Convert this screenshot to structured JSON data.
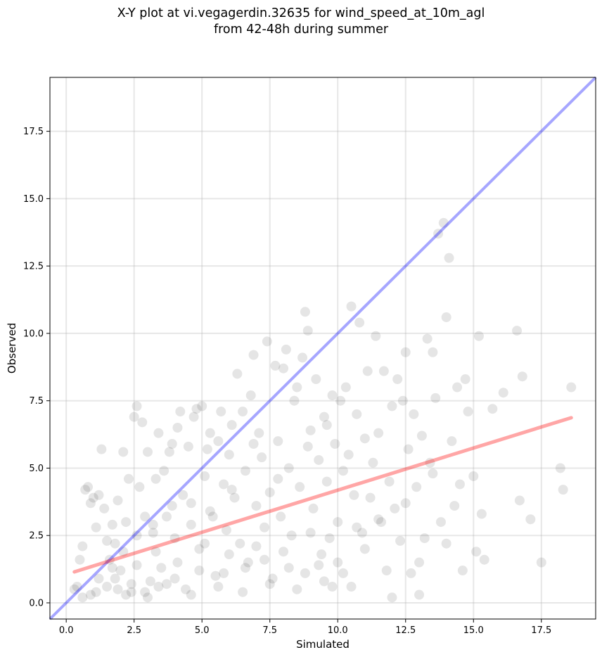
{
  "title_line1": "X-Y plot at vi.vegagerdin.32635 for wind_speed_at_10m_agl",
  "title_line2": "from 42-48h during summer",
  "chart_data": {
    "type": "scatter",
    "title": "X-Y plot at vi.vegagerdin.32635 for wind_speed_at_10m_agl\nfrom 42-48h during summer",
    "xlabel": "Simulated",
    "ylabel": "Observed",
    "xlim": [
      -0.6,
      19.5
    ],
    "ylim": [
      -0.6,
      19.5
    ],
    "x_ticks": [
      "0.0",
      "2.5",
      "5.0",
      "7.5",
      "10.0",
      "12.5",
      "15.0",
      "17.5"
    ],
    "y_ticks": [
      "0.0",
      "2.5",
      "5.0",
      "7.5",
      "10.0",
      "12.5",
      "15.0",
      "17.5"
    ],
    "grid": true,
    "colors": {
      "points": "#000000",
      "identity_line": "#0000ff",
      "fit_line": "#ff0000"
    },
    "identity_line": {
      "x": [
        -0.6,
        19.5
      ],
      "y": [
        -0.6,
        19.5
      ]
    },
    "fit_line": {
      "x": [
        0.3,
        18.6
      ],
      "y": [
        1.15,
        6.87
      ]
    },
    "points": [
      [
        0.3,
        0.5
      ],
      [
        0.4,
        0.6
      ],
      [
        0.5,
        1.6
      ],
      [
        0.6,
        2.1
      ],
      [
        0.7,
        4.2
      ],
      [
        0.8,
        4.3
      ],
      [
        0.9,
        3.7
      ],
      [
        1.0,
        3.9
      ],
      [
        1.1,
        2.8
      ],
      [
        1.2,
        4.0
      ],
      [
        1.3,
        5.7
      ],
      [
        1.4,
        3.5
      ],
      [
        1.5,
        2.3
      ],
      [
        1.6,
        1.6
      ],
      [
        1.7,
        2.9
      ],
      [
        1.8,
        2.2
      ],
      [
        1.9,
        3.8
      ],
      [
        2.0,
        1.2
      ],
      [
        2.1,
        5.6
      ],
      [
        2.2,
        3.0
      ],
      [
        2.3,
        4.6
      ],
      [
        2.4,
        0.4
      ],
      [
        2.5,
        6.9
      ],
      [
        2.6,
        7.3
      ],
      [
        2.7,
        4.3
      ],
      [
        2.8,
        6.7
      ],
      [
        2.9,
        3.2
      ],
      [
        3.0,
        5.6
      ],
      [
        3.1,
        0.8
      ],
      [
        3.2,
        2.6
      ],
      [
        3.3,
        4.6
      ],
      [
        3.4,
        6.3
      ],
      [
        3.5,
        1.3
      ],
      [
        3.6,
        4.9
      ],
      [
        3.7,
        3.2
      ],
      [
        3.8,
        5.6
      ],
      [
        3.9,
        5.9
      ],
      [
        4.0,
        2.4
      ],
      [
        4.1,
        6.5
      ],
      [
        4.2,
        7.1
      ],
      [
        4.3,
        4.0
      ],
      [
        4.4,
        0.5
      ],
      [
        4.5,
        5.8
      ],
      [
        4.6,
        3.7
      ],
      [
        4.7,
        6.9
      ],
      [
        4.8,
        7.2
      ],
      [
        4.9,
        2.0
      ],
      [
        5.0,
        7.3
      ],
      [
        5.1,
        4.7
      ],
      [
        5.2,
        5.7
      ],
      [
        5.3,
        6.3
      ],
      [
        5.4,
        3.2
      ],
      [
        5.5,
        1.0
      ],
      [
        5.6,
        6.0
      ],
      [
        5.7,
        7.1
      ],
      [
        5.8,
        4.4
      ],
      [
        5.9,
        2.7
      ],
      [
        6.0,
        5.5
      ],
      [
        6.1,
        6.6
      ],
      [
        6.2,
        3.9
      ],
      [
        6.3,
        8.5
      ],
      [
        6.4,
        2.2
      ],
      [
        6.5,
        7.1
      ],
      [
        6.6,
        4.9
      ],
      [
        6.7,
        1.5
      ],
      [
        6.8,
        7.7
      ],
      [
        6.9,
        9.2
      ],
      [
        7.0,
        3.6
      ],
      [
        7.1,
        6.3
      ],
      [
        7.2,
        5.4
      ],
      [
        7.3,
        2.8
      ],
      [
        7.4,
        9.7
      ],
      [
        7.5,
        4.1
      ],
      [
        7.6,
        0.9
      ],
      [
        7.7,
        8.8
      ],
      [
        7.8,
        6.0
      ],
      [
        7.9,
        3.2
      ],
      [
        8.0,
        8.7
      ],
      [
        8.1,
        9.4
      ],
      [
        8.2,
        5.0
      ],
      [
        8.3,
        2.5
      ],
      [
        8.4,
        7.5
      ],
      [
        8.5,
        8.0
      ],
      [
        8.6,
        4.3
      ],
      [
        8.7,
        9.1
      ],
      [
        8.8,
        10.8
      ],
      [
        8.9,
        10.1
      ],
      [
        9.0,
        6.4
      ],
      [
        9.1,
        3.5
      ],
      [
        9.2,
        8.3
      ],
      [
        9.3,
        5.3
      ],
      [
        9.4,
        1.8
      ],
      [
        9.5,
        6.9
      ],
      [
        9.6,
        4.5
      ],
      [
        9.7,
        2.4
      ],
      [
        9.8,
        7.7
      ],
      [
        9.9,
        5.9
      ],
      [
        10.0,
        3.0
      ],
      [
        10.1,
        7.5
      ],
      [
        10.2,
        1.1
      ],
      [
        10.3,
        8.0
      ],
      [
        10.4,
        5.5
      ],
      [
        10.5,
        11.0
      ],
      [
        10.6,
        4.0
      ],
      [
        10.7,
        7.0
      ],
      [
        10.8,
        10.4
      ],
      [
        10.9,
        2.6
      ],
      [
        11.0,
        6.1
      ],
      [
        11.1,
        8.6
      ],
      [
        11.2,
        3.9
      ],
      [
        11.3,
        5.2
      ],
      [
        11.4,
        9.9
      ],
      [
        11.5,
        6.3
      ],
      [
        11.6,
        3.0
      ],
      [
        11.7,
        8.6
      ],
      [
        11.8,
        1.2
      ],
      [
        11.9,
        4.5
      ],
      [
        12.0,
        7.3
      ],
      [
        12.1,
        3.5
      ],
      [
        12.2,
        8.3
      ],
      [
        12.3,
        2.3
      ],
      [
        12.4,
        7.5
      ],
      [
        12.5,
        9.3
      ],
      [
        12.6,
        5.7
      ],
      [
        12.7,
        1.1
      ],
      [
        12.8,
        7.0
      ],
      [
        12.9,
        4.3
      ],
      [
        13.0,
        0.3
      ],
      [
        13.1,
        6.2
      ],
      [
        13.2,
        2.4
      ],
      [
        13.3,
        9.8
      ],
      [
        13.4,
        5.2
      ],
      [
        13.5,
        9.3
      ],
      [
        13.6,
        7.6
      ],
      [
        13.7,
        13.7
      ],
      [
        13.8,
        3.0
      ],
      [
        13.9,
        14.1
      ],
      [
        14.0,
        10.6
      ],
      [
        14.1,
        12.8
      ],
      [
        14.2,
        6.0
      ],
      [
        14.3,
        3.6
      ],
      [
        14.4,
        8.0
      ],
      [
        14.5,
        4.4
      ],
      [
        14.6,
        1.2
      ],
      [
        14.7,
        8.3
      ],
      [
        14.8,
        7.1
      ],
      [
        15.0,
        4.7
      ],
      [
        15.1,
        1.9
      ],
      [
        15.2,
        9.9
      ],
      [
        15.3,
        3.3
      ],
      [
        15.4,
        1.6
      ],
      [
        15.7,
        7.2
      ],
      [
        16.1,
        7.8
      ],
      [
        16.6,
        10.1
      ],
      [
        16.7,
        3.8
      ],
      [
        16.8,
        8.4
      ],
      [
        17.1,
        3.1
      ],
      [
        17.5,
        1.5
      ],
      [
        18.2,
        5.0
      ],
      [
        18.3,
        4.2
      ],
      [
        18.6,
        8.0
      ],
      [
        1.5,
        0.6
      ],
      [
        1.8,
        0.9
      ],
      [
        2.2,
        0.3
      ],
      [
        2.6,
        1.4
      ],
      [
        3.0,
        0.2
      ],
      [
        3.3,
        1.9
      ],
      [
        3.7,
        0.7
      ],
      [
        4.1,
        1.5
      ],
      [
        4.6,
        0.3
      ],
      [
        5.1,
        2.2
      ],
      [
        5.6,
        0.6
      ],
      [
        6.0,
        1.8
      ],
      [
        6.5,
        0.4
      ],
      [
        7.0,
        2.1
      ],
      [
        7.5,
        0.7
      ],
      [
        8.0,
        1.9
      ],
      [
        8.5,
        0.5
      ],
      [
        9.0,
        2.6
      ],
      [
        9.5,
        0.8
      ],
      [
        10.0,
        1.5
      ],
      [
        10.5,
        0.6
      ],
      [
        11.0,
        2.0
      ],
      [
        11.5,
        3.1
      ],
      [
        12.0,
        0.2
      ],
      [
        12.5,
        3.7
      ],
      [
        13.0,
        1.5
      ],
      [
        13.5,
        4.8
      ],
      [
        14.0,
        2.2
      ],
      [
        10.2,
        4.9
      ],
      [
        9.6,
        6.6
      ],
      [
        8.9,
        5.8
      ],
      [
        7.8,
        4.6
      ],
      [
        6.9,
        5.9
      ],
      [
        6.1,
        4.2
      ],
      [
        5.3,
        3.4
      ],
      [
        4.6,
        2.9
      ],
      [
        3.9,
        3.6
      ],
      [
        3.2,
        2.9
      ],
      [
        2.6,
        2.5
      ],
      [
        2.1,
        1.9
      ],
      [
        1.7,
        1.3
      ],
      [
        1.2,
        0.9
      ],
      [
        0.9,
        0.3
      ],
      [
        0.6,
        0.2
      ],
      [
        1.1,
        0.4
      ],
      [
        1.9,
        0.5
      ],
      [
        2.4,
        0.7
      ],
      [
        2.9,
        0.4
      ],
      [
        3.4,
        0.6
      ],
      [
        4.0,
        0.9
      ],
      [
        4.9,
        1.2
      ],
      [
        5.8,
        1.1
      ],
      [
        6.6,
        1.3
      ],
      [
        7.3,
        1.6
      ],
      [
        8.2,
        1.3
      ],
      [
        8.8,
        1.1
      ],
      [
        9.3,
        1.4
      ],
      [
        9.8,
        0.6
      ],
      [
        10.7,
        2.8
      ]
    ]
  }
}
